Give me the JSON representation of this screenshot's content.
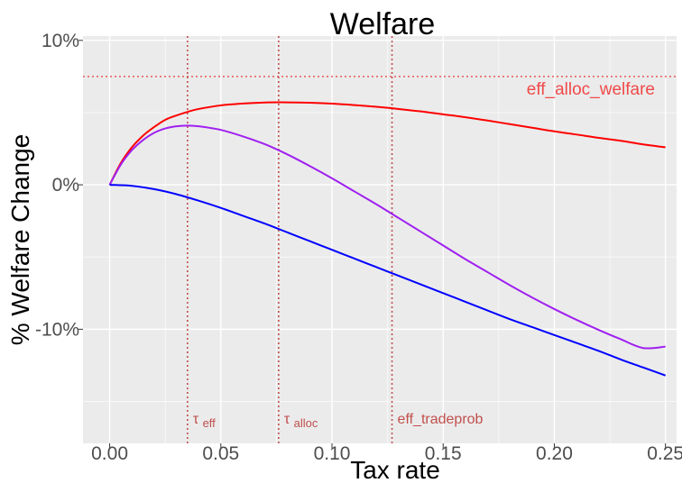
{
  "chart_data": {
    "type": "line",
    "title": "Welfare",
    "xlabel": "Tax rate",
    "ylabel": "% Welfare Change",
    "xlim": [
      -0.012,
      0.255
    ],
    "ylim": [
      -17.9,
      10.3
    ],
    "x_ticks": [
      0.0,
      0.05,
      0.1,
      0.15,
      0.2,
      0.25
    ],
    "x_tick_labels": [
      "0.00",
      "0.05",
      "0.10",
      "0.15",
      "0.20",
      "0.25"
    ],
    "y_ticks": [
      10,
      0,
      -10
    ],
    "y_tick_labels": [
      "10%",
      "0%",
      "-10%"
    ],
    "grid": true,
    "legend": "none",
    "colors": {
      "panel_bg": "#ebebeb",
      "grid_major": "#ffffff",
      "ref_line": "#e8585a",
      "vline": "#c0504d"
    },
    "series": [
      {
        "color": "#ff0000",
        "x": [
          0,
          0.005,
          0.01,
          0.015,
          0.02,
          0.025,
          0.03,
          0.035,
          0.04,
          0.05,
          0.06,
          0.07,
          0.08,
          0.09,
          0.1,
          0.11,
          0.12,
          0.13,
          0.14,
          0.15,
          0.16,
          0.17,
          0.18,
          0.19,
          0.2,
          0.21,
          0.22,
          0.23,
          0.24,
          0.25
        ],
        "y": [
          0,
          1.5,
          2.6,
          3.4,
          4.0,
          4.5,
          4.8,
          5.05,
          5.25,
          5.5,
          5.63,
          5.7,
          5.71,
          5.68,
          5.62,
          5.52,
          5.4,
          5.25,
          5.08,
          4.88,
          4.68,
          4.45,
          4.2,
          3.95,
          3.7,
          3.48,
          3.25,
          3.05,
          2.8,
          2.6
        ]
      },
      {
        "color": "#a020f0",
        "x": [
          0,
          0.005,
          0.01,
          0.015,
          0.02,
          0.025,
          0.03,
          0.035,
          0.04,
          0.05,
          0.06,
          0.07,
          0.08,
          0.09,
          0.1,
          0.11,
          0.12,
          0.13,
          0.14,
          0.15,
          0.16,
          0.17,
          0.18,
          0.19,
          0.2,
          0.21,
          0.22,
          0.23,
          0.24,
          0.25
        ],
        "y": [
          0,
          1.4,
          2.4,
          3.1,
          3.6,
          3.9,
          4.05,
          4.1,
          4.05,
          3.8,
          3.35,
          2.8,
          2.1,
          1.3,
          0.45,
          -0.45,
          -1.35,
          -2.3,
          -3.25,
          -4.2,
          -5.15,
          -6.05,
          -6.95,
          -7.8,
          -8.6,
          -9.35,
          -10.05,
          -10.7,
          -11.3,
          -11.2
        ]
      },
      {
        "color": "#0000ff",
        "x": [
          0,
          0.01,
          0.02,
          0.03,
          0.04,
          0.05,
          0.06,
          0.07,
          0.08,
          0.09,
          0.1,
          0.11,
          0.12,
          0.13,
          0.14,
          0.15,
          0.16,
          0.17,
          0.18,
          0.19,
          0.2,
          0.21,
          0.22,
          0.23,
          0.24,
          0.25
        ],
        "y": [
          0,
          -0.07,
          -0.3,
          -0.65,
          -1.1,
          -1.6,
          -2.15,
          -2.7,
          -3.3,
          -3.9,
          -4.5,
          -5.1,
          -5.7,
          -6.3,
          -6.9,
          -7.5,
          -8.1,
          -8.7,
          -9.3,
          -9.85,
          -10.4,
          -10.95,
          -11.5,
          -12.1,
          -12.65,
          -13.2
        ]
      }
    ],
    "reference_lines": {
      "horizontal": [
        {
          "y": 7.5,
          "label": "eff_alloc_welfare"
        }
      ],
      "vertical": [
        {
          "x": 0.035,
          "symbol": "τ",
          "subscript": "eff"
        },
        {
          "x": 0.076,
          "symbol": "τ",
          "subscript": "alloc"
        },
        {
          "x": 0.127,
          "label": "eff_tradeprob"
        }
      ]
    }
  }
}
